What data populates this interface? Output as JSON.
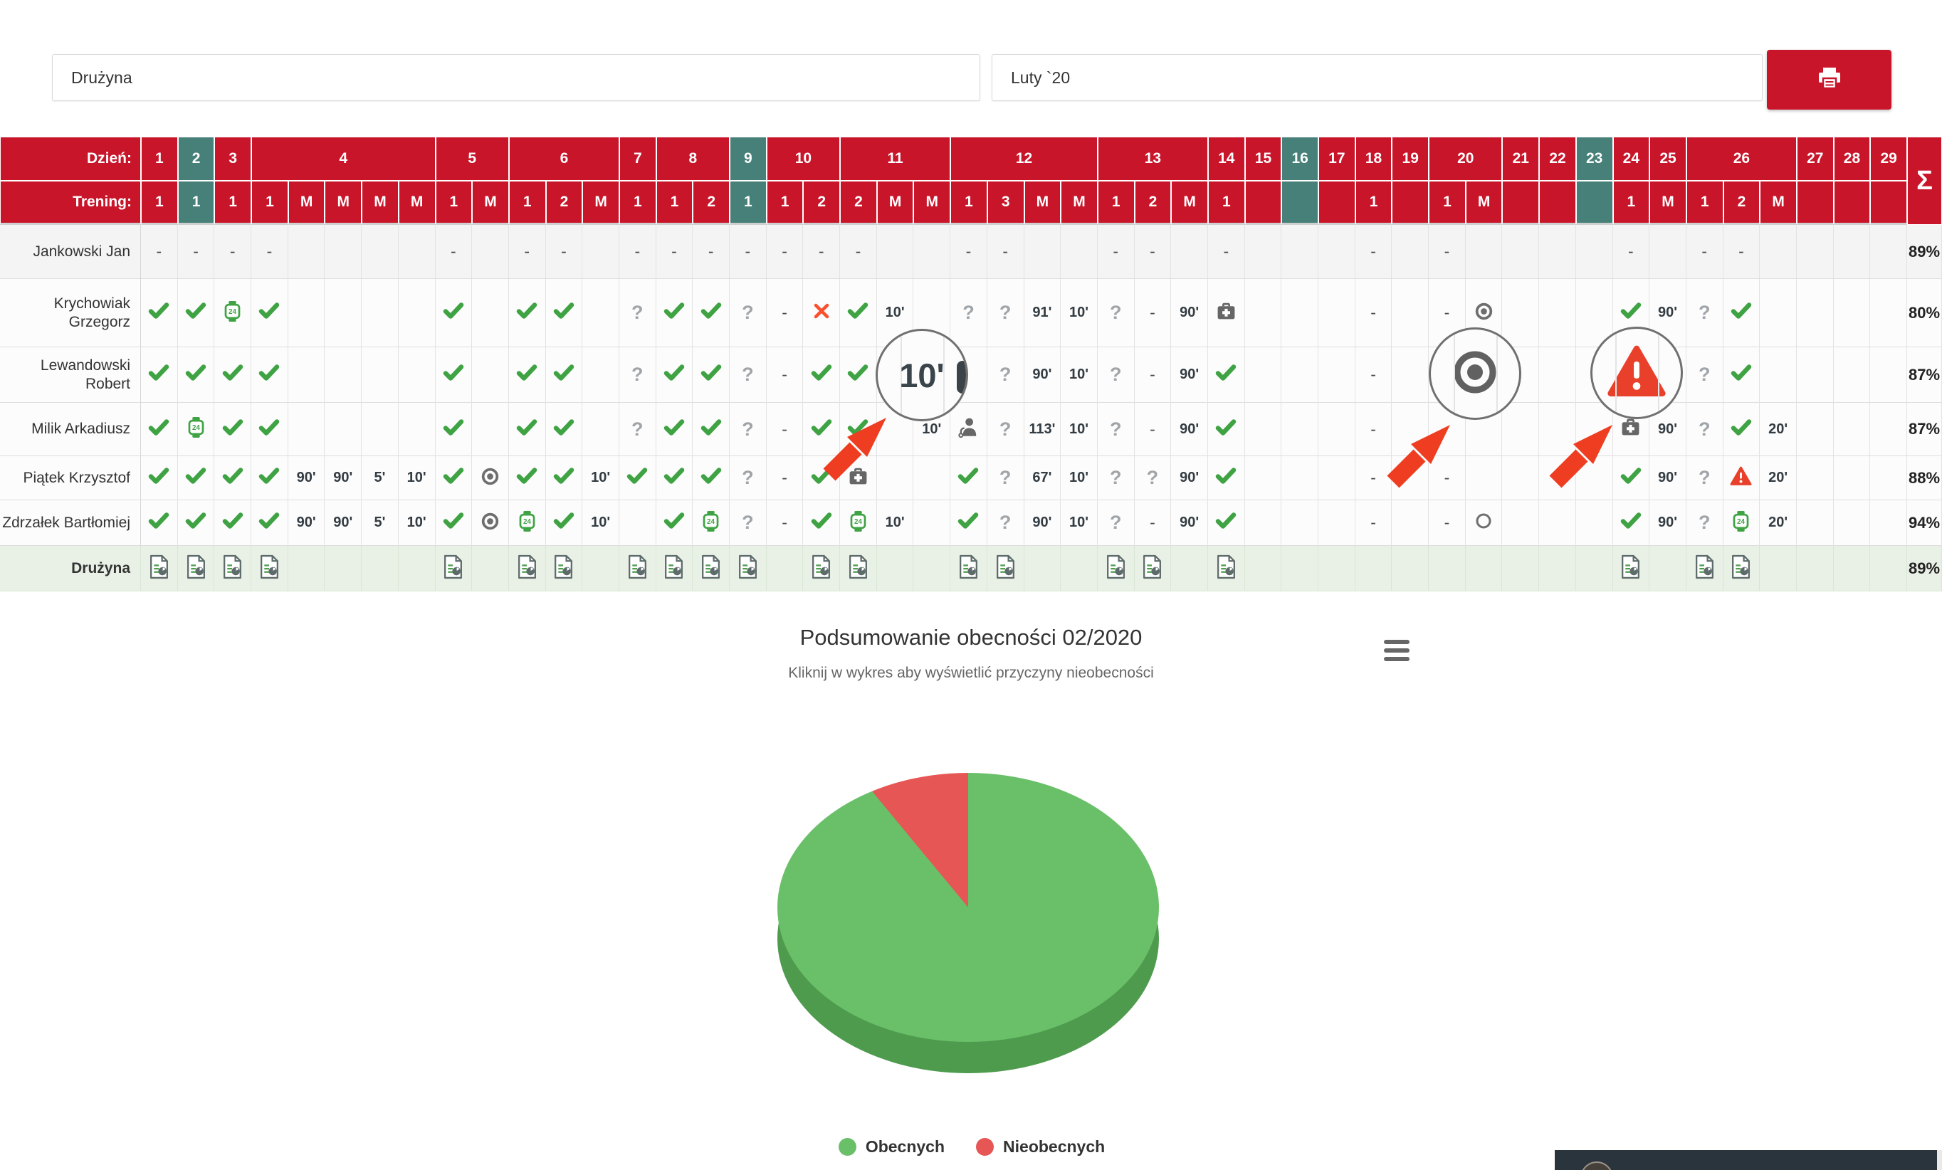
{
  "filters": {
    "team": "Drużyna",
    "month": "Luty `20"
  },
  "toolbar": {
    "print_icon": "printer-icon"
  },
  "table": {
    "day_label": "Dzień:",
    "training_label": "Trening:",
    "sum_symbol": "Σ",
    "days": [
      {
        "day": "1",
        "sessions": [
          "1"
        ],
        "sunday": false
      },
      {
        "day": "2",
        "sessions": [
          "1"
        ],
        "sunday": true
      },
      {
        "day": "3",
        "sessions": [
          "1"
        ],
        "sunday": false
      },
      {
        "day": "4",
        "sessions": [
          "1",
          "M",
          "M",
          "M",
          "M"
        ],
        "sunday": false
      },
      {
        "day": "5",
        "sessions": [
          "1",
          "M"
        ],
        "sunday": false
      },
      {
        "day": "6",
        "sessions": [
          "1",
          "2",
          "M"
        ],
        "sunday": false
      },
      {
        "day": "7",
        "sessions": [
          "1"
        ],
        "sunday": false
      },
      {
        "day": "8",
        "sessions": [
          "1",
          "2"
        ],
        "sunday": false
      },
      {
        "day": "9",
        "sessions": [
          "1"
        ],
        "sunday": true
      },
      {
        "day": "10",
        "sessions": [
          "1",
          "2"
        ],
        "sunday": false
      },
      {
        "day": "11",
        "sessions": [
          "2",
          "M",
          "M"
        ],
        "sunday": false
      },
      {
        "day": "12",
        "sessions": [
          "1",
          "3",
          "M",
          "M"
        ],
        "sunday": false
      },
      {
        "day": "13",
        "sessions": [
          "1",
          "2",
          "M"
        ],
        "sunday": false
      },
      {
        "day": "14",
        "sessions": [
          "1"
        ],
        "sunday": false
      },
      {
        "day": "15",
        "sessions": [
          ""
        ],
        "sunday": false
      },
      {
        "day": "16",
        "sessions": [
          ""
        ],
        "sunday": true
      },
      {
        "day": "17",
        "sessions": [
          ""
        ],
        "sunday": false
      },
      {
        "day": "18",
        "sessions": [
          "1"
        ],
        "sunday": false
      },
      {
        "day": "19",
        "sessions": [
          ""
        ],
        "sunday": false
      },
      {
        "day": "20",
        "sessions": [
          "1",
          "M"
        ],
        "sunday": false
      },
      {
        "day": "21",
        "sessions": [
          ""
        ],
        "sunday": false
      },
      {
        "day": "22",
        "sessions": [
          ""
        ],
        "sunday": false
      },
      {
        "day": "23",
        "sessions": [
          ""
        ],
        "sunday": true
      },
      {
        "day": "24",
        "sessions": [
          "1"
        ],
        "sunday": false
      },
      {
        "day": "25",
        "sessions": [
          "M"
        ],
        "sunday": false
      },
      {
        "day": "26",
        "sessions": [
          "1",
          "2",
          "M"
        ],
        "sunday": false
      },
      {
        "day": "27",
        "sessions": [
          ""
        ],
        "sunday": false
      },
      {
        "day": "28",
        "sessions": [
          ""
        ],
        "sunday": false
      },
      {
        "day": "29",
        "sessions": [
          ""
        ],
        "sunday": false
      }
    ],
    "players": [
      {
        "name": "Jankowski Jan",
        "total": "89%",
        "cells": [
          "dash",
          "dash",
          "dash",
          "dash",
          "",
          "",
          "",
          "",
          "dash",
          "",
          "dash",
          "dash",
          "",
          "dash",
          "dash",
          "dash",
          "dash",
          "dash",
          "dash",
          "dash",
          "",
          "",
          "dash",
          "dash",
          "",
          "",
          "dash",
          "dash",
          "",
          "dash",
          "",
          "",
          "",
          "dash",
          "",
          "dash",
          "",
          "",
          "",
          "",
          "dash",
          "",
          "dash",
          "dash",
          "",
          "",
          "",
          ""
        ]
      },
      {
        "name": "Krychowiak Grzegorz",
        "total": "80%",
        "cells": [
          "check",
          "check",
          "watch24",
          "check",
          "",
          "",
          "",
          "",
          "check",
          "",
          "check",
          "check",
          "",
          "question",
          "check",
          "check",
          "question",
          "dash",
          "absent",
          "check",
          "10'",
          "",
          "question",
          "question",
          "91'",
          "10'",
          "question",
          "dash",
          "90'",
          "medcase",
          "",
          "",
          "",
          "dash",
          "",
          "dash",
          "target",
          "",
          "",
          "",
          "check",
          "90'",
          "question",
          "check",
          "",
          "",
          "",
          ""
        ]
      },
      {
        "name": "Lewandowski Robert",
        "total": "87%",
        "cells": [
          "check",
          "check",
          "check",
          "check",
          "",
          "",
          "",
          "",
          "check",
          "",
          "check",
          "check",
          "",
          "question",
          "check",
          "check",
          "question",
          "dash",
          "check",
          "check",
          "10'",
          "",
          "",
          "question",
          "90'",
          "10'",
          "question",
          "dash",
          "90'",
          "check",
          "",
          "",
          "",
          "dash",
          "",
          "",
          "target",
          "",
          "",
          "",
          "warning",
          "90'",
          "question",
          "check",
          "",
          "",
          "",
          ""
        ]
      },
      {
        "name": "Milik Arkadiusz",
        "total": "87%",
        "cells": [
          "check",
          "watch24",
          "check",
          "check",
          "",
          "",
          "",
          "",
          "check",
          "",
          "check",
          "check",
          "",
          "question",
          "check",
          "check",
          "question",
          "dash",
          "check",
          "check",
          "",
          "10'",
          "doctor",
          "question",
          "113'",
          "10'",
          "question",
          "dash",
          "90'",
          "check",
          "",
          "",
          "",
          "dash",
          "",
          "",
          "",
          "",
          "",
          "",
          "medcase",
          "90'",
          "question",
          "check",
          "20'",
          "",
          "",
          ""
        ]
      },
      {
        "name": "Piątek Krzysztof",
        "total": "88%",
        "cells": [
          "check",
          "check",
          "check",
          "check",
          "90'",
          "90'",
          "5'",
          "10'",
          "check",
          "target",
          "check",
          "check",
          "10'",
          "check",
          "check",
          "check",
          "question",
          "dash",
          "check",
          "medcase",
          "",
          "",
          "check",
          "question",
          "67'",
          "10'",
          "question",
          "question",
          "90'",
          "check",
          "",
          "",
          "",
          "dash",
          "",
          "dash",
          "",
          "",
          "",
          "",
          "check",
          "90'",
          "question",
          "warning",
          "20'",
          "",
          "",
          ""
        ]
      },
      {
        "name": "Zdrzałek Bartłomiej",
        "total": "94%",
        "cells": [
          "check",
          "check",
          "check",
          "check",
          "90'",
          "90'",
          "5'",
          "10'",
          "check",
          "target",
          "watch24",
          "check",
          "10'",
          "",
          "check",
          "watch24",
          "question",
          "dash",
          "check",
          "watch24",
          "10'",
          "",
          "check",
          "question",
          "90'",
          "10'",
          "question",
          "dash",
          "90'",
          "check",
          "",
          "",
          "",
          "dash",
          "",
          "dash",
          "circleopen",
          "",
          "",
          "",
          "check",
          "90'",
          "question",
          "watch24",
          "20'",
          "",
          "",
          ""
        ]
      }
    ],
    "team_row": {
      "name": "Drużyna",
      "total": "89%",
      "cells": [
        "report",
        "report",
        "report",
        "report",
        "",
        "",
        "",
        "",
        "report",
        "",
        "report",
        "report",
        "",
        "report",
        "report",
        "report",
        "report",
        "",
        "report",
        "report",
        "",
        "",
        "report",
        "report",
        "",
        "",
        "report",
        "report",
        "",
        "report",
        "",
        "",
        "",
        "",
        "",
        "",
        "",
        "",
        "",
        "",
        "report",
        "",
        "report",
        "report",
        "",
        "",
        "",
        ""
      ]
    }
  },
  "callouts": [
    {
      "kind": "minutes",
      "value": "10'"
    },
    {
      "kind": "target-icon",
      "value": ""
    },
    {
      "kind": "warning-icon",
      "value": ""
    }
  ],
  "chart": {
    "title": "Podsumowanie obecności 02/2020",
    "subtitle": "Kliknij w wykres aby wyświetlić przyczyny nieobecności",
    "legend": [
      {
        "label": "Obecnych",
        "color": "#6abf69"
      },
      {
        "label": "Nieobecnych",
        "color": "#e65654"
      }
    ]
  },
  "chart_data": {
    "type": "pie",
    "title": "Podsumowanie obecności 02/2020",
    "subtitle": "Kliknij w wykres aby wyświetlić przyczyny nieobecności",
    "labels": [
      "Obecnych",
      "Nieobecnych"
    ],
    "values": [
      89,
      11
    ],
    "unit": "%",
    "colors": [
      "#6abf69",
      "#e65654"
    ],
    "side_color": "#4e9b4e",
    "legend_position": "bottom",
    "effect": "3d"
  },
  "colors": {
    "header_red": "#c9152a",
    "sunday_teal": "#468079",
    "present_green": "#3fa344",
    "absent_orange": "#fb4f2b",
    "warning_red": "#e8402a",
    "team_row_green": "#e9f1e6",
    "arrow_red": "#ee3d20"
  }
}
